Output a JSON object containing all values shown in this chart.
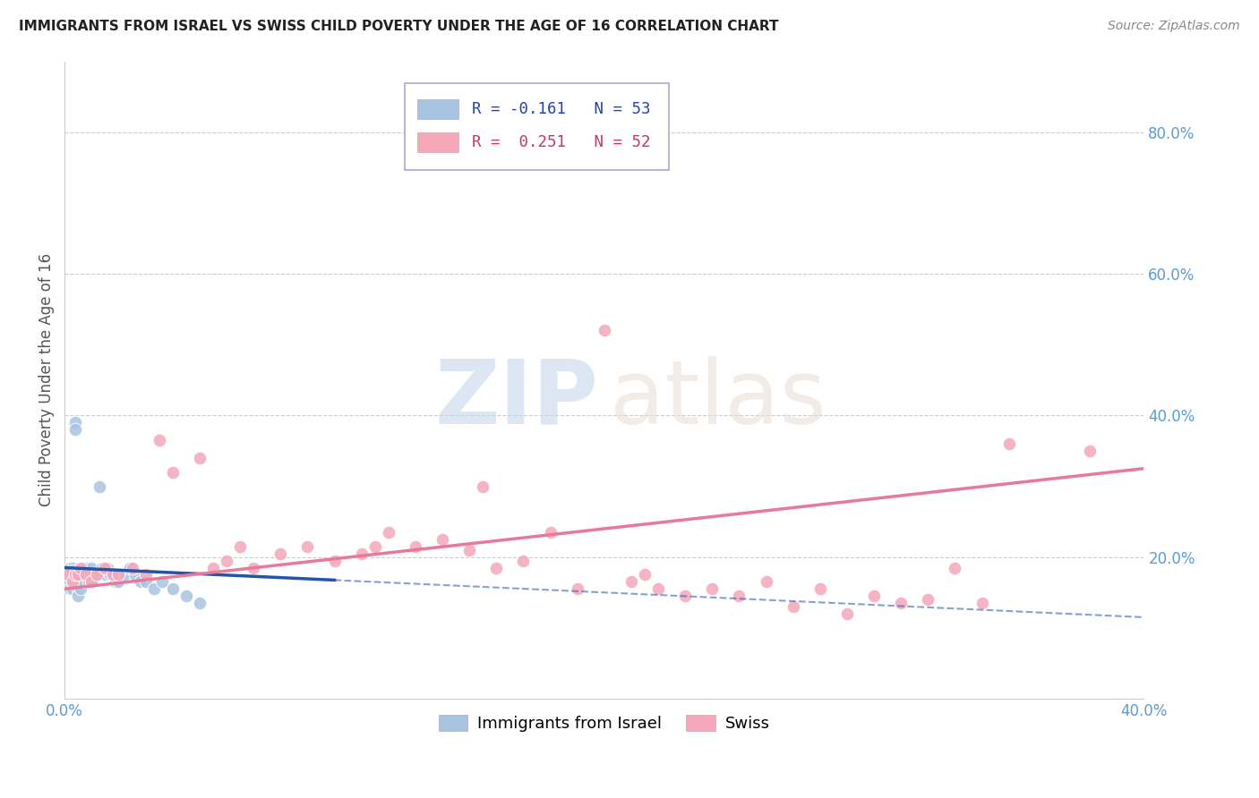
{
  "title": "IMMIGRANTS FROM ISRAEL VS SWISS CHILD POVERTY UNDER THE AGE OF 16 CORRELATION CHART",
  "source": "Source: ZipAtlas.com",
  "ylabel": "Child Poverty Under the Age of 16",
  "xlim": [
    0.0,
    0.4
  ],
  "ylim": [
    0.0,
    0.9
  ],
  "blue_color": "#a8c4e0",
  "pink_color": "#f4a7b9",
  "blue_line_color": "#2255aa",
  "pink_line_color": "#e8799a",
  "grid_color": "#cccccc",
  "title_color": "#222222",
  "axis_label_color": "#5b9bd5",
  "blue_R": -0.161,
  "blue_N": 53,
  "pink_R": 0.251,
  "pink_N": 52,
  "legend_label1": "Immigrants from Israel",
  "legend_label2": "Swiss",
  "blue_scatter_x": [
    0.001,
    0.001,
    0.002,
    0.002,
    0.002,
    0.002,
    0.002,
    0.003,
    0.003,
    0.003,
    0.003,
    0.003,
    0.004,
    0.004,
    0.004,
    0.004,
    0.005,
    0.005,
    0.005,
    0.005,
    0.006,
    0.006,
    0.006,
    0.007,
    0.007,
    0.007,
    0.008,
    0.008,
    0.009,
    0.009,
    0.01,
    0.01,
    0.011,
    0.012,
    0.013,
    0.013,
    0.014,
    0.015,
    0.016,
    0.017,
    0.018,
    0.019,
    0.02,
    0.022,
    0.024,
    0.026,
    0.028,
    0.03,
    0.033,
    0.036,
    0.04,
    0.045,
    0.05
  ],
  "blue_scatter_y": [
    0.175,
    0.165,
    0.185,
    0.175,
    0.175,
    0.165,
    0.155,
    0.185,
    0.175,
    0.18,
    0.165,
    0.155,
    0.39,
    0.38,
    0.175,
    0.165,
    0.175,
    0.165,
    0.155,
    0.145,
    0.175,
    0.165,
    0.155,
    0.185,
    0.175,
    0.165,
    0.185,
    0.175,
    0.18,
    0.165,
    0.185,
    0.165,
    0.175,
    0.175,
    0.3,
    0.175,
    0.185,
    0.175,
    0.185,
    0.175,
    0.175,
    0.165,
    0.165,
    0.175,
    0.185,
    0.175,
    0.165,
    0.165,
    0.155,
    0.165,
    0.155,
    0.145,
    0.135
  ],
  "pink_scatter_x": [
    0.001,
    0.003,
    0.004,
    0.005,
    0.006,
    0.008,
    0.01,
    0.012,
    0.015,
    0.018,
    0.02,
    0.025,
    0.03,
    0.035,
    0.04,
    0.05,
    0.055,
    0.06,
    0.065,
    0.07,
    0.08,
    0.09,
    0.1,
    0.11,
    0.115,
    0.12,
    0.13,
    0.14,
    0.15,
    0.155,
    0.16,
    0.17,
    0.18,
    0.19,
    0.2,
    0.21,
    0.215,
    0.22,
    0.23,
    0.24,
    0.25,
    0.26,
    0.27,
    0.28,
    0.29,
    0.3,
    0.31,
    0.32,
    0.33,
    0.34,
    0.35,
    0.38
  ],
  "pink_scatter_y": [
    0.175,
    0.165,
    0.175,
    0.175,
    0.185,
    0.175,
    0.165,
    0.175,
    0.185,
    0.175,
    0.175,
    0.185,
    0.175,
    0.365,
    0.32,
    0.34,
    0.185,
    0.195,
    0.215,
    0.185,
    0.205,
    0.215,
    0.195,
    0.205,
    0.215,
    0.235,
    0.215,
    0.225,
    0.21,
    0.3,
    0.185,
    0.195,
    0.235,
    0.155,
    0.52,
    0.165,
    0.175,
    0.155,
    0.145,
    0.155,
    0.145,
    0.165,
    0.13,
    0.155,
    0.12,
    0.145,
    0.135,
    0.14,
    0.185,
    0.135,
    0.36,
    0.35
  ]
}
